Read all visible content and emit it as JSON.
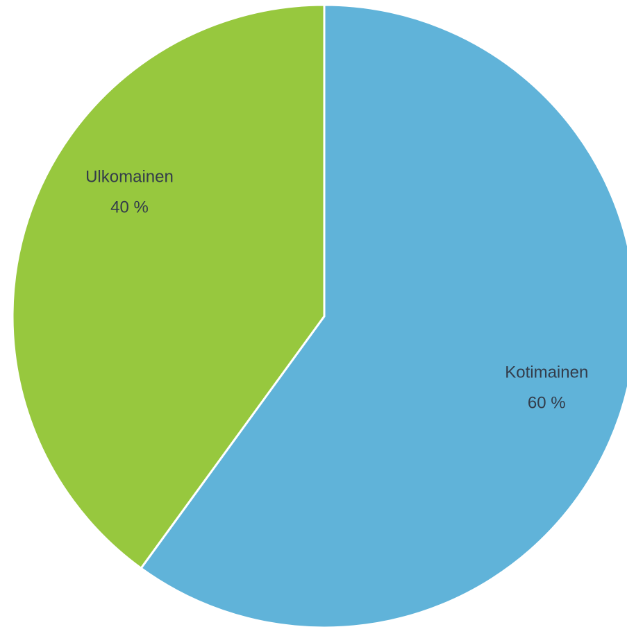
{
  "chart_data": {
    "type": "pie",
    "categories": [
      "Kotimainen",
      "Ulkomainen"
    ],
    "values": [
      60,
      40
    ],
    "value_labels": [
      "60 %",
      "40 %"
    ],
    "colors": [
      "#60b3d9",
      "#97c83e"
    ]
  }
}
